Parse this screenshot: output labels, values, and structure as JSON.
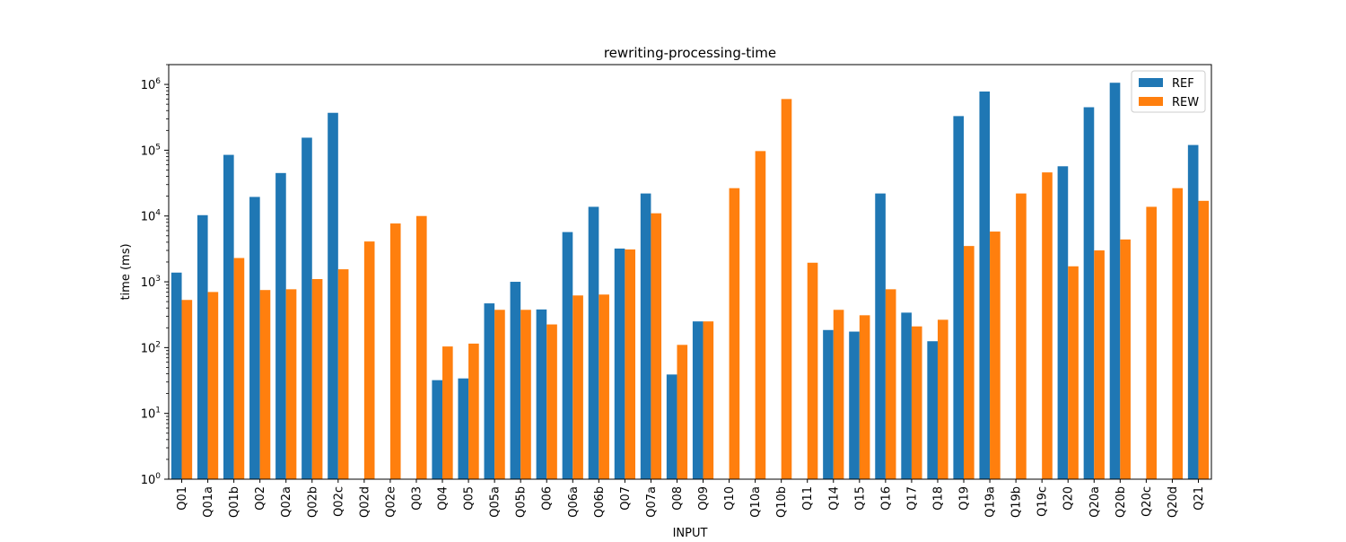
{
  "chart_data": {
    "type": "bar",
    "title": "rewriting-processing-time",
    "xlabel": "INPUT",
    "ylabel": "time (ms)",
    "y_scale": "log",
    "ylim": [
      1,
      2000000
    ],
    "y_ticks": [
      {
        "value": 1,
        "base": "10",
        "exp": "0"
      },
      {
        "value": 10,
        "base": "10",
        "exp": "1"
      },
      {
        "value": 100,
        "base": "10",
        "exp": "2"
      },
      {
        "value": 1000,
        "base": "10",
        "exp": "3"
      },
      {
        "value": 10000,
        "base": "10",
        "exp": "4"
      },
      {
        "value": 100000,
        "base": "10",
        "exp": "5"
      },
      {
        "value": 1000000,
        "base": "10",
        "exp": "6"
      }
    ],
    "grid": false,
    "legend_position": "top-right",
    "categories": [
      "Q01",
      "Q01a",
      "Q01b",
      "Q02",
      "Q02a",
      "Q02b",
      "Q02c",
      "Q02d",
      "Q02e",
      "Q03",
      "Q04",
      "Q05",
      "Q05a",
      "Q05b",
      "Q06",
      "Q06a",
      "Q06b",
      "Q07",
      "Q07a",
      "Q08",
      "Q09",
      "Q10",
      "Q10a",
      "Q10b",
      "Q11",
      "Q14",
      "Q15",
      "Q16",
      "Q17",
      "Q18",
      "Q19",
      "Q19a",
      "Q19b",
      "Q19c",
      "Q20",
      "Q20a",
      "Q20b",
      "Q20c",
      "Q20d",
      "Q21"
    ],
    "series": [
      {
        "name": "REF",
        "color": "#1f77b4",
        "values": [
          1380,
          10300,
          85000,
          19500,
          45000,
          155000,
          370000,
          null,
          null,
          null,
          32,
          34,
          470,
          1000,
          380,
          5700,
          13800,
          3200,
          22000,
          39,
          250,
          null,
          null,
          null,
          null,
          185,
          175,
          22000,
          340,
          125,
          330000,
          780000,
          null,
          null,
          57000,
          450000,
          1060000,
          null,
          null,
          120000
        ]
      },
      {
        "name": "REW",
        "color": "#ff7f0e",
        "values": [
          530,
          700,
          2300,
          750,
          770,
          1100,
          1550,
          4100,
          7700,
          10000,
          104,
          115,
          375,
          375,
          225,
          620,
          640,
          3100,
          11000,
          110,
          250,
          26500,
          97000,
          600000,
          1950,
          375,
          310,
          770,
          210,
          265,
          3500,
          5800,
          22000,
          46000,
          1720,
          3000,
          4400,
          13800,
          26500,
          17000
        ]
      }
    ]
  }
}
